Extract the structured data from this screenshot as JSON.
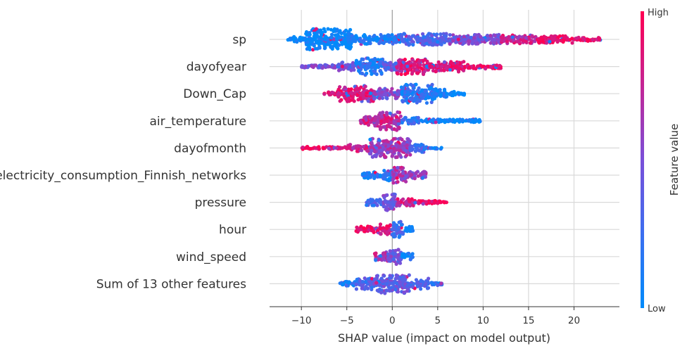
{
  "chart_data": {
    "type": "scatter",
    "title": "",
    "xlabel": "SHAP value (impact on model output)",
    "ylabel": "",
    "xlim": [
      -13.5,
      25
    ],
    "xticks": [
      -10,
      -5,
      0,
      5,
      10,
      15,
      20
    ],
    "xtick_labels": [
      "−10",
      "−5",
      "0",
      "5",
      "10",
      "15",
      "20"
    ],
    "grid": true,
    "colorbar": {
      "title": "Feature value",
      "high_label": "High",
      "low_label": "Low",
      "high_color": "#ff0052",
      "low_color": "#008bfb"
    },
    "features": [
      {
        "name": "sp",
        "min": -11.5,
        "max": 23.0,
        "segments": [
          {
            "range": [
              -11.5,
              -9.5
            ],
            "width": 0.25,
            "color": 0.0
          },
          {
            "range": [
              -9.5,
              -4.5
            ],
            "width": 1.0,
            "color": 0.0
          },
          {
            "range": [
              -4.5,
              1.0
            ],
            "width": 0.45,
            "color": 0.12
          },
          {
            "range": [
              1.0,
              6.0
            ],
            "width": 0.55,
            "color": 0.3
          },
          {
            "range": [
              6.0,
              12.0
            ],
            "width": 0.45,
            "color": 0.5
          },
          {
            "range": [
              12.0,
              16.0
            ],
            "width": 0.4,
            "color": 0.75
          },
          {
            "range": [
              16.0,
              20.0
            ],
            "width": 0.35,
            "color": 0.92
          },
          {
            "range": [
              20.0,
              23.0
            ],
            "width": 0.18,
            "color": 0.95
          }
        ]
      },
      {
        "name": "dayofyear",
        "min": -10.0,
        "max": 12.0,
        "segments": [
          {
            "range": [
              -10.0,
              -6.0
            ],
            "width": 0.15,
            "color": 0.45
          },
          {
            "range": [
              -6.0,
              -4.0
            ],
            "width": 0.4,
            "color": 0.4
          },
          {
            "range": [
              -4.0,
              -1.0
            ],
            "width": 0.8,
            "color": 0.15
          },
          {
            "range": [
              -1.0,
              0.5
            ],
            "width": 0.4,
            "color": 0.4
          },
          {
            "range": [
              0.5,
              4.0
            ],
            "width": 0.75,
            "color": 0.85
          },
          {
            "range": [
              4.0,
              8.0
            ],
            "width": 0.5,
            "color": 0.88
          },
          {
            "range": [
              8.0,
              12.0
            ],
            "width": 0.2,
            "color": 0.9
          }
        ]
      },
      {
        "name": "Down_Cap",
        "min": -7.5,
        "max": 8.0,
        "segments": [
          {
            "range": [
              -7.5,
              -6.0
            ],
            "width": 0.2,
            "color": 0.9
          },
          {
            "range": [
              -6.0,
              -2.0
            ],
            "width": 0.75,
            "color": 0.85
          },
          {
            "range": [
              -2.0,
              1.0
            ],
            "width": 0.5,
            "color": 0.5
          },
          {
            "range": [
              1.0,
              4.5
            ],
            "width": 0.9,
            "color": 0.15
          },
          {
            "range": [
              4.5,
              6.0
            ],
            "width": 0.45,
            "color": 0.05
          },
          {
            "range": [
              6.0,
              8.0
            ],
            "width": 0.2,
            "color": 0.0
          }
        ]
      },
      {
        "name": "air_temperature",
        "min": -3.5,
        "max": 10.0,
        "segments": [
          {
            "range": [
              -3.5,
              -2.0
            ],
            "width": 0.4,
            "color": 0.8
          },
          {
            "range": [
              -2.0,
              1.0
            ],
            "width": 0.9,
            "color": 0.75
          },
          {
            "range": [
              1.0,
              3.0
            ],
            "width": 0.3,
            "color": 0.2
          },
          {
            "range": [
              3.0,
              10.0
            ],
            "width": 0.15,
            "color": 0.0
          }
        ]
      },
      {
        "name": "dayofmonth",
        "min": -10.0,
        "max": 5.5,
        "segments": [
          {
            "range": [
              -10.0,
              -5.0
            ],
            "width": 0.12,
            "color": 0.95
          },
          {
            "range": [
              -5.0,
              -2.5
            ],
            "width": 0.35,
            "color": 0.8
          },
          {
            "range": [
              -2.5,
              2.0
            ],
            "width": 0.9,
            "color": 0.6
          },
          {
            "range": [
              2.0,
              3.5
            ],
            "width": 0.4,
            "color": 0.3
          },
          {
            "range": [
              3.5,
              5.5
            ],
            "width": 0.12,
            "color": 0.1
          }
        ]
      },
      {
        "name": "electricity_consumption_Finnish_networks",
        "min": -3.3,
        "max": 3.7,
        "segments": [
          {
            "range": [
              -3.3,
              -1.0
            ],
            "width": 0.3,
            "color": 0.15
          },
          {
            "range": [
              -1.0,
              0.0
            ],
            "width": 0.6,
            "color": 0.1
          },
          {
            "range": [
              0.0,
              1.5
            ],
            "width": 0.75,
            "color": 0.65
          },
          {
            "range": [
              1.5,
              3.7
            ],
            "width": 0.35,
            "color": 0.6
          }
        ]
      },
      {
        "name": "pressure",
        "min": -3.0,
        "max": 6.0,
        "segments": [
          {
            "range": [
              -3.0,
              -1.0
            ],
            "width": 0.3,
            "color": 0.3
          },
          {
            "range": [
              -1.0,
              0.5
            ],
            "width": 0.8,
            "color": 0.5
          },
          {
            "range": [
              0.5,
              2.5
            ],
            "width": 0.35,
            "color": 0.8
          },
          {
            "range": [
              2.5,
              6.0
            ],
            "width": 0.15,
            "color": 0.95
          }
        ]
      },
      {
        "name": "hour",
        "min": -4.0,
        "max": 2.3,
        "segments": [
          {
            "range": [
              -4.0,
              -1.5
            ],
            "width": 0.3,
            "color": 0.95
          },
          {
            "range": [
              -1.5,
              0.0
            ],
            "width": 0.5,
            "color": 0.85
          },
          {
            "range": [
              0.0,
              1.2
            ],
            "width": 0.75,
            "color": 0.25
          },
          {
            "range": [
              1.2,
              2.3
            ],
            "width": 0.3,
            "color": 0.05
          }
        ]
      },
      {
        "name": "wind_speed",
        "min": -2.0,
        "max": 2.3,
        "segments": [
          {
            "range": [
              -2.0,
              -0.5
            ],
            "width": 0.45,
            "color": 0.7
          },
          {
            "range": [
              -0.5,
              1.0
            ],
            "width": 0.75,
            "color": 0.45
          },
          {
            "range": [
              1.0,
              2.3
            ],
            "width": 0.3,
            "color": 0.05
          }
        ]
      },
      {
        "name": "Sum of 13 other features",
        "min": -5.8,
        "max": 5.5,
        "segments": [
          {
            "range": [
              -5.8,
              -4.0
            ],
            "width": 0.2,
            "color": 0.15
          },
          {
            "range": [
              -4.0,
              -2.0
            ],
            "width": 0.55,
            "color": 0.3
          },
          {
            "range": [
              -2.0,
              2.0
            ],
            "width": 0.9,
            "color": 0.4
          },
          {
            "range": [
              2.0,
              4.0
            ],
            "width": 0.5,
            "color": 0.35
          },
          {
            "range": [
              4.0,
              5.5
            ],
            "width": 0.15,
            "color": 0.2
          }
        ]
      }
    ]
  }
}
